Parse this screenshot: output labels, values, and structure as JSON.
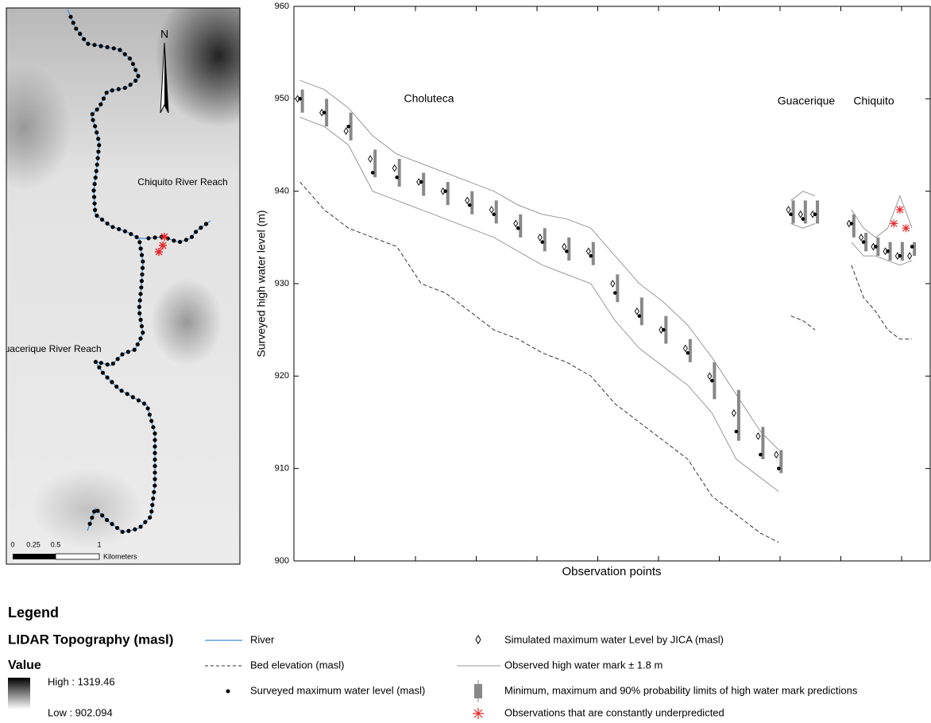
{
  "map": {
    "north": "N",
    "label_chiquito": "Chiquito River Reach",
    "label_guacerique": "Guacerique River Reach",
    "scale_labels": [
      "0",
      "0.25",
      "0.5",
      "1"
    ],
    "scale_unit": "Kilometers"
  },
  "legend": {
    "title": "Legend",
    "layer": "LIDAR Topography (masl)",
    "value_heading": "Value",
    "high": "High : 1319.46",
    "low": "Low : 902.094",
    "river": "River"
  },
  "chart_data": {
    "type": "reach-profile",
    "y_label": "Surveyed high water level (m)",
    "x_label": "Observation points",
    "annotations": [
      "Choluteca",
      "Guacerique",
      "Chiquito"
    ],
    "xlim": [
      0,
      105
    ],
    "ylim": [
      900,
      960
    ],
    "yticks": [
      900,
      910,
      920,
      930,
      940,
      950,
      960
    ],
    "x": [
      1,
      5,
      9,
      13,
      17,
      21,
      25,
      29,
      33,
      37,
      41,
      45,
      49,
      53,
      57,
      61,
      65,
      69,
      73,
      77,
      80,
      81,
      82,
      84,
      86,
      89,
      92,
      94,
      96,
      98,
      100,
      102
    ],
    "bed": {
      "name": "Bed elevation (masl)",
      "color": "#333333",
      "values": [
        941,
        938,
        936,
        935,
        934,
        930,
        929,
        927,
        925,
        924,
        922.5,
        921.5,
        920,
        917,
        915,
        913,
        911,
        907,
        905,
        903,
        902,
        null,
        926.5,
        926,
        925,
        null,
        932,
        928.5,
        927,
        925,
        924,
        924
      ]
    },
    "band": {
      "name": "Observed high water mark ± 1.8 m",
      "color": "#999999",
      "upper": [
        952,
        951,
        949,
        946,
        944,
        943,
        942,
        941,
        940,
        938.5,
        937.5,
        937,
        936,
        933,
        930,
        928,
        925.5,
        922,
        918,
        914,
        912,
        null,
        939,
        940,
        939.5,
        null,
        938,
        936,
        935,
        936,
        939.5,
        936
      ],
      "lower": [
        948,
        947,
        945,
        940,
        939,
        938,
        937,
        936,
        935,
        933.5,
        932,
        931,
        930,
        926,
        923,
        921,
        919,
        916,
        911,
        909,
        907.5,
        null,
        936.5,
        936,
        936.5,
        null,
        934.5,
        933,
        933,
        932.5,
        932,
        932.5
      ]
    },
    "predictions": {
      "name": "Minimum, maximum and 90% probability limits of high water mark predictions",
      "color": "#888888",
      "low": [
        948.5,
        947,
        945.5,
        941.5,
        940.5,
        939.5,
        938.5,
        937.5,
        936.5,
        935,
        933.5,
        932.5,
        932,
        928,
        925.5,
        923.5,
        921.5,
        917.5,
        913,
        911,
        909.5,
        null,
        936.5,
        936.5,
        936.5,
        null,
        935,
        933.5,
        933,
        932.5,
        932.5,
        933
      ],
      "high": [
        951,
        950,
        948.5,
        944.5,
        943.5,
        942,
        941,
        940,
        939,
        937.5,
        936,
        935,
        934.5,
        931,
        928.5,
        926.5,
        924,
        921.5,
        918.5,
        914.5,
        912,
        null,
        939,
        939,
        939,
        null,
        937.5,
        935.5,
        935,
        934.5,
        934.5,
        934.5
      ]
    },
    "surveyed": {
      "name": "Surveyed maximum water level (masl)",
      "color": "#000000",
      "values": [
        950,
        948.5,
        947,
        942,
        941.5,
        941,
        940,
        938.5,
        937.5,
        936,
        934.5,
        933.5,
        933,
        929,
        926.5,
        925,
        922.5,
        919.5,
        914,
        911.5,
        910,
        null,
        937.5,
        937,
        937.5,
        null,
        936.5,
        934.5,
        934,
        933.5,
        933,
        934
      ]
    },
    "simulated": {
      "name": "Simulated maximum water Level by JICA (masl)",
      "color": "#000000",
      "values": [
        950,
        948.5,
        946.5,
        943.5,
        942.5,
        941,
        940,
        939,
        938,
        936.5,
        935,
        934,
        933.5,
        930,
        927,
        925,
        923,
        920,
        916,
        913.5,
        911.5,
        null,
        938,
        937.5,
        937.5,
        null,
        936.5,
        935,
        934,
        933.5,
        933,
        933
      ]
    },
    "underpredicted": {
      "name": "Observations that are constantly underpredicted",
      "color": "#e8262a",
      "x": [
        99,
        100,
        101
      ],
      "values": [
        936.5,
        938,
        936
      ]
    }
  }
}
